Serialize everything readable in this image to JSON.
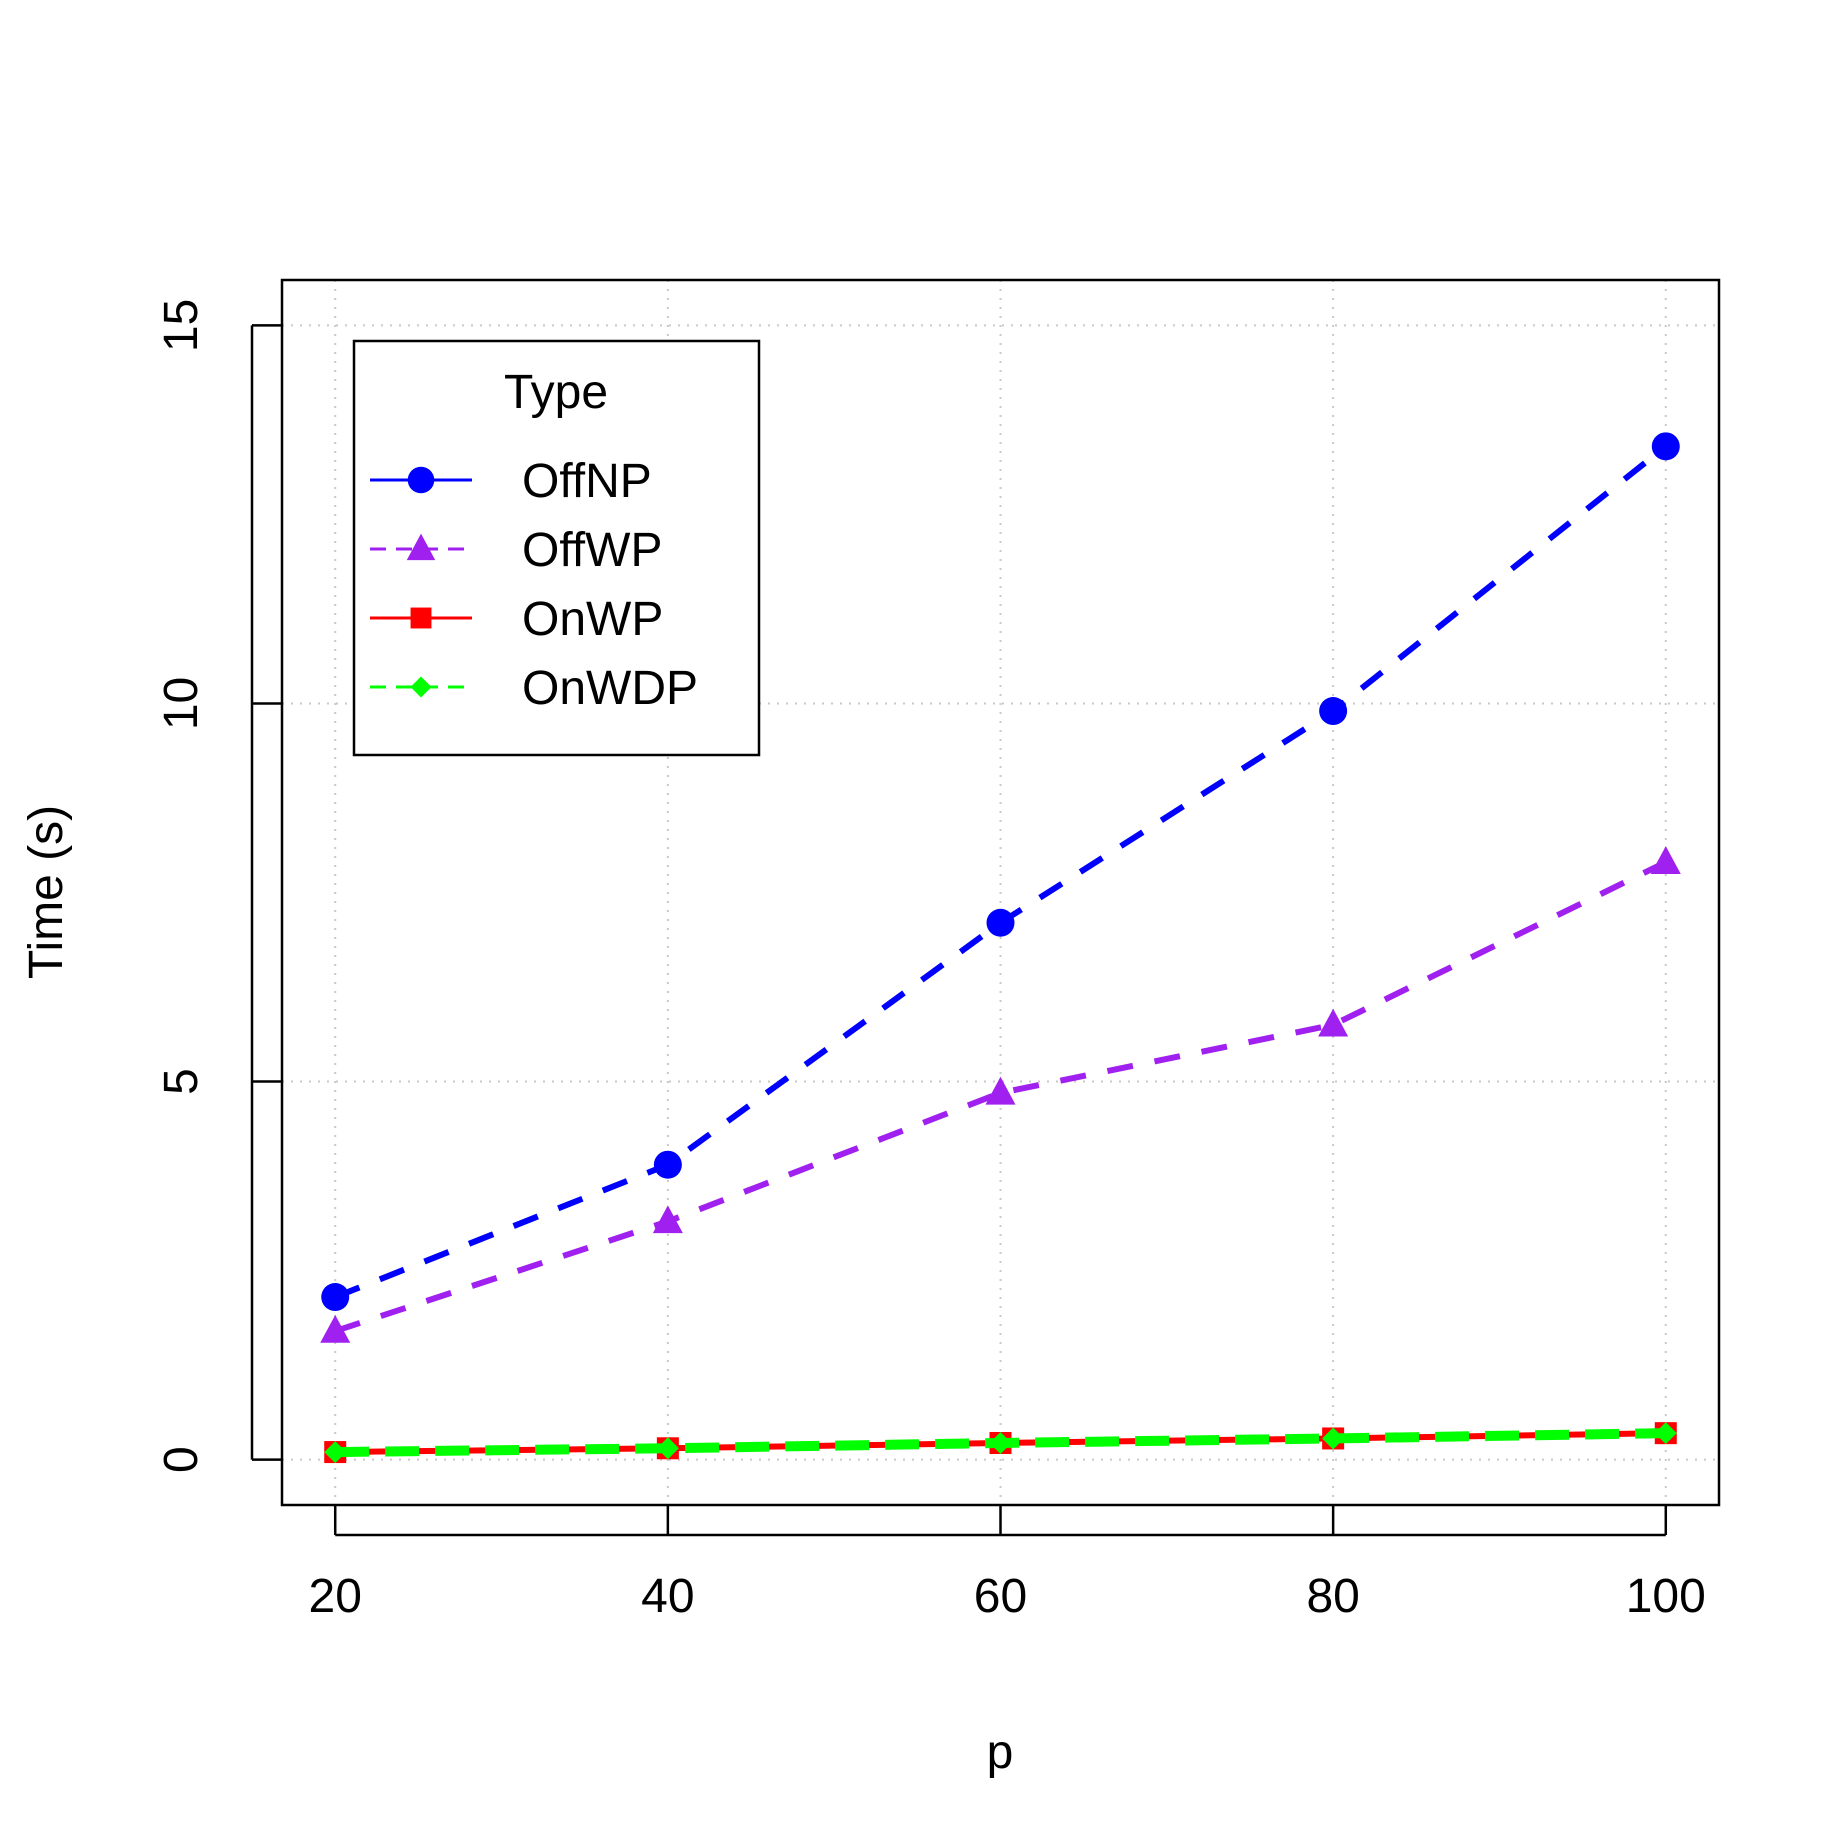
{
  "chart_data": {
    "type": "line",
    "xlabel": "p",
    "ylabel": "Time (s)",
    "x": [
      20,
      40,
      60,
      80,
      100
    ],
    "xticks": [
      "20",
      "40",
      "60",
      "80",
      "100"
    ],
    "yticks": [
      "0",
      "5",
      "10",
      "15"
    ],
    "xlim": [
      16.8,
      103.2
    ],
    "ylim": [
      -0.6,
      15.6
    ],
    "grid": true,
    "legend": {
      "title": "Type",
      "position": "top-left"
    },
    "series": [
      {
        "name": "OffNP",
        "values": [
          2.15,
          3.9,
          7.1,
          9.9,
          13.4
        ],
        "color": "#0000ff",
        "marker": "circle",
        "legend_line": "solid"
      },
      {
        "name": "OffWP",
        "values": [
          1.7,
          3.15,
          4.85,
          5.75,
          7.9
        ],
        "color": "#a020f0",
        "marker": "triangle",
        "legend_line": "dashed"
      },
      {
        "name": "OnWP",
        "values": [
          0.1,
          0.15,
          0.22,
          0.28,
          0.35
        ],
        "color": "#ff0000",
        "marker": "square",
        "legend_line": "solid"
      },
      {
        "name": "OnWDP",
        "values": [
          0.1,
          0.15,
          0.22,
          0.28,
          0.35
        ],
        "color": "#00ff00",
        "marker": "diamond",
        "legend_line": "dashed"
      }
    ]
  }
}
